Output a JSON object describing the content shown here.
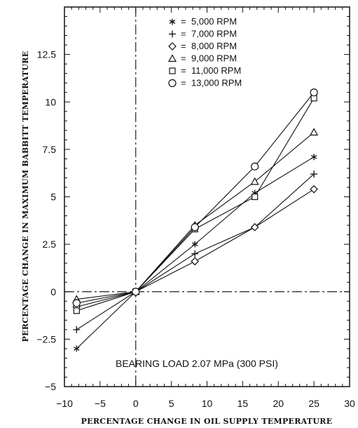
{
  "chart_data": {
    "type": "line",
    "xlabel": "PERCENTAGE CHANGE IN OIL SUPPLY TEMPERATURE",
    "ylabel": "PERCENTAGE CHANGE IN MAXIMUM BABBITT TEMPERATURE",
    "xlim": [
      -10,
      30
    ],
    "ylim": [
      -5,
      15
    ],
    "x_ticks": [
      -10,
      -5,
      0,
      5,
      10,
      15,
      20,
      25,
      30
    ],
    "x_tick_labels": [
      "−10",
      "−5",
      "0",
      "5",
      "10",
      "15",
      "20",
      "25",
      "30"
    ],
    "y_ticks": [
      -5,
      -2.5,
      0,
      2.5,
      5,
      7.5,
      10,
      12.5
    ],
    "y_tick_labels": [
      "−5",
      "−2.5",
      "0",
      "2.5",
      "5",
      "7.5",
      "10",
      "12.5"
    ],
    "grid": false,
    "legend_position": "top-center",
    "annotation": "BEARING LOAD 2.07 MPa (300 PSI)",
    "x": [
      -8.3,
      0,
      8.3,
      16.7,
      25
    ],
    "series": [
      {
        "name": "5,000 RPM",
        "marker": "asterisk",
        "values": [
          -3.0,
          0,
          2.5,
          5.2,
          7.1
        ]
      },
      {
        "name": "7,000 RPM",
        "marker": "plus",
        "values": [
          -2.0,
          0,
          2.0,
          3.4,
          6.2
        ]
      },
      {
        "name": "8,000 RPM",
        "marker": "diamond",
        "values": [
          -0.8,
          0,
          1.6,
          3.4,
          5.4
        ]
      },
      {
        "name": "9,000 RPM",
        "marker": "triangle",
        "values": [
          -0.4,
          0,
          3.5,
          5.8,
          8.4
        ]
      },
      {
        "name": "11,000 RPM",
        "marker": "square",
        "values": [
          -1.0,
          0,
          3.3,
          5.0,
          10.2
        ]
      },
      {
        "name": "13,000 RPM",
        "marker": "circle",
        "values": [
          -0.6,
          0,
          3.4,
          6.6,
          10.5
        ]
      }
    ]
  }
}
